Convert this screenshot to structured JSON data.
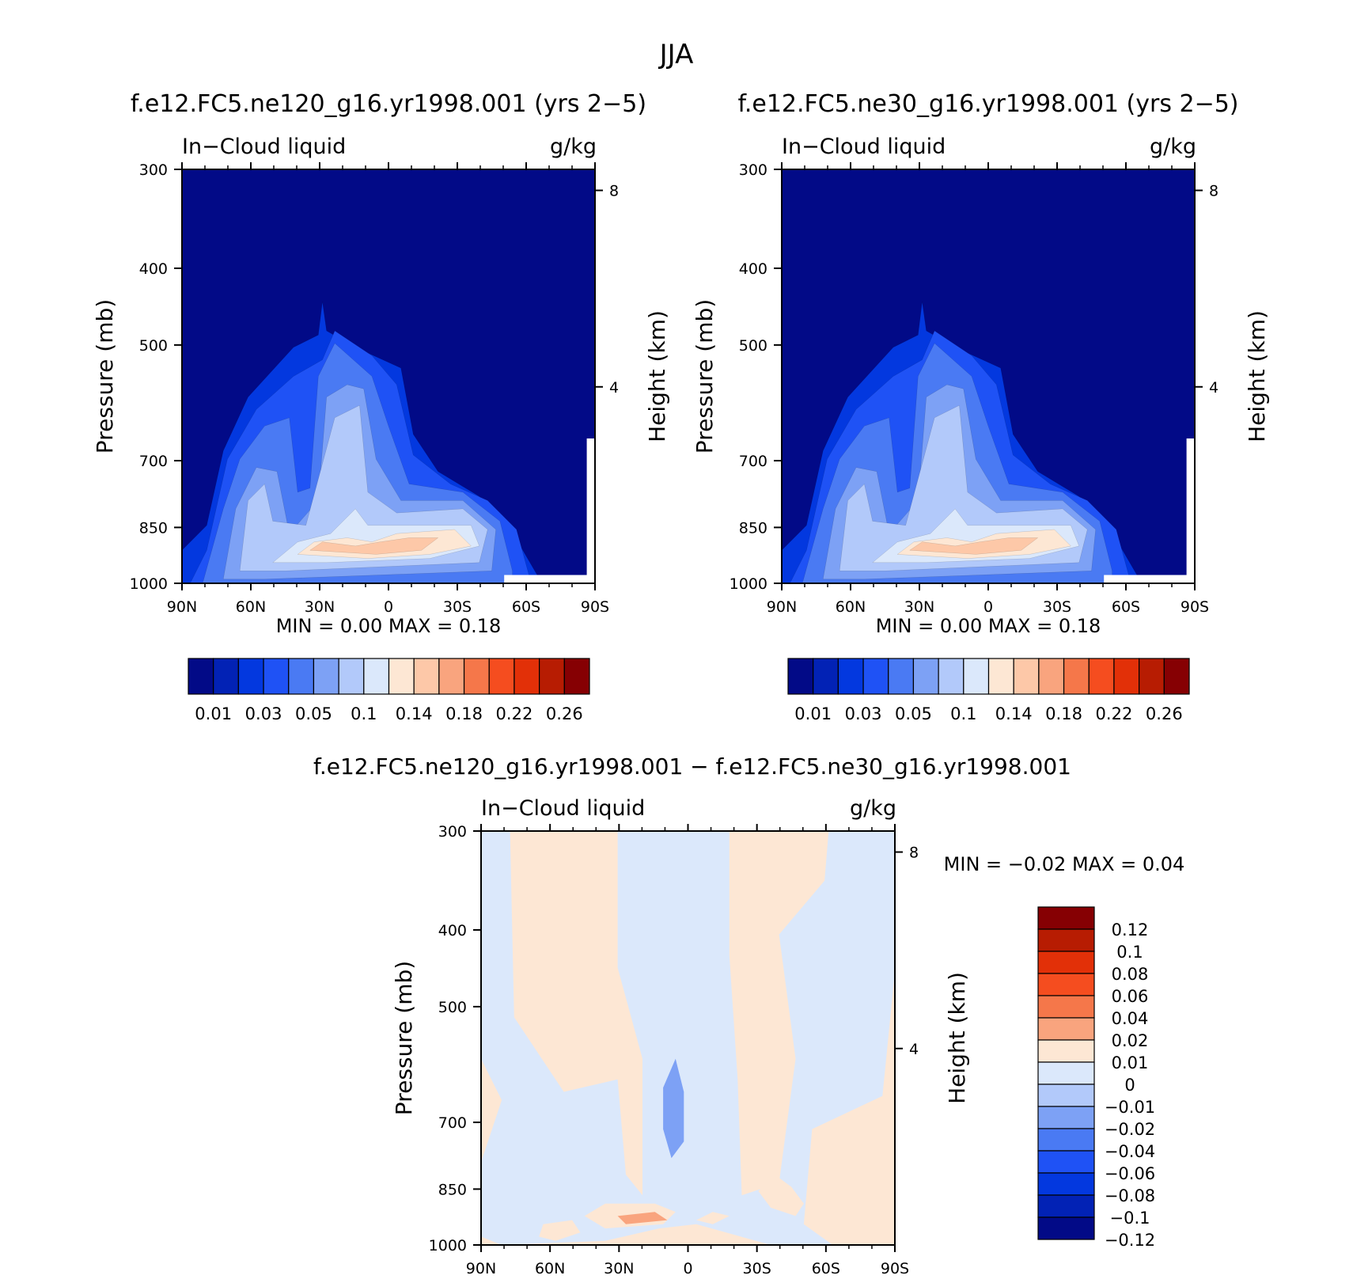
{
  "figure_title": "JJA",
  "diff_title": "f.e12.FC5.ne120_g16.yr1998.001 − f.e12.FC5.ne30_g16.yr1998.001",
  "chart_data": [
    {
      "type": "heatmap",
      "title": "f.e12.FC5.ne120_g16.yr1998.001 (yrs 2−5)",
      "left_string": "In−Cloud liquid",
      "right_string": "g/kg",
      "xlabel": "",
      "ylabel": "Pressure (mb)",
      "y2label": "Height (km)",
      "x_ticks": [
        "90N",
        "60N",
        "30N",
        "0",
        "30S",
        "60S",
        "90S"
      ],
      "y_ticks": [
        "300",
        "400",
        "500",
        "700",
        "850",
        "1000"
      ],
      "y2_ticks": [
        "8",
        "4"
      ],
      "ylim": [
        1000,
        300
      ],
      "y_scale": "log",
      "min_max_text": "MIN =     0.00   MAX =     0.18",
      "min": 0.0,
      "max": 0.18,
      "colorbar_labels": [
        "0.01",
        "0.03",
        "0.05",
        "0.1",
        "0.14",
        "0.18",
        "0.22",
        "0.26"
      ],
      "colorbar_levels": [
        0.01,
        0.02,
        0.03,
        0.04,
        0.05,
        0.07,
        0.1,
        0.12,
        0.14,
        0.16,
        0.18,
        0.2,
        0.22,
        0.24,
        0.26
      ],
      "colorbar_colors": [
        "#020a87",
        "#0222b5",
        "#0338df",
        "#1f52f5",
        "#4a7af3",
        "#7da1f5",
        "#b2c9fa",
        "#dbe8fb",
        "#fde7d4",
        "#fdc8a8",
        "#f9a47e",
        "#f5774a",
        "#f54d1f",
        "#e23008",
        "#b71c02",
        "#860003"
      ]
    },
    {
      "type": "heatmap",
      "title": "f.e12.FC5.ne30_g16.yr1998.001 (yrs 2−5)",
      "left_string": "In−Cloud liquid",
      "right_string": "g/kg",
      "xlabel": "",
      "ylabel": "Pressure (mb)",
      "y2label": "Height (km)",
      "x_ticks": [
        "90N",
        "60N",
        "30N",
        "0",
        "30S",
        "60S",
        "90S"
      ],
      "y_ticks": [
        "300",
        "400",
        "500",
        "700",
        "850",
        "1000"
      ],
      "y2_ticks": [
        "8",
        "4"
      ],
      "ylim": [
        1000,
        300
      ],
      "y_scale": "log",
      "min_max_text": "MIN =     0.00   MAX =     0.18",
      "min": 0.0,
      "max": 0.18,
      "colorbar_labels": [
        "0.01",
        "0.03",
        "0.05",
        "0.1",
        "0.14",
        "0.18",
        "0.22",
        "0.26"
      ],
      "colorbar_levels": [
        0.01,
        0.02,
        0.03,
        0.04,
        0.05,
        0.07,
        0.1,
        0.12,
        0.14,
        0.16,
        0.18,
        0.2,
        0.22,
        0.24,
        0.26
      ],
      "colorbar_colors": [
        "#020a87",
        "#0222b5",
        "#0338df",
        "#1f52f5",
        "#4a7af3",
        "#7da1f5",
        "#b2c9fa",
        "#dbe8fb",
        "#fde7d4",
        "#fdc8a8",
        "#f9a47e",
        "#f5774a",
        "#f54d1f",
        "#e23008",
        "#b71c02",
        "#860003"
      ]
    },
    {
      "type": "heatmap",
      "title": "",
      "left_string": "In−Cloud liquid",
      "right_string": "g/kg",
      "xlabel": "",
      "ylabel": "Pressure (mb)",
      "y2label": "Height (km)",
      "x_ticks": [
        "90N",
        "60N",
        "30N",
        "0",
        "30S",
        "60S",
        "90S"
      ],
      "y_ticks": [
        "300",
        "400",
        "500",
        "700",
        "850",
        "1000"
      ],
      "y2_ticks": [
        "8",
        "4"
      ],
      "ylim": [
        1000,
        300
      ],
      "y_scale": "log",
      "min_max_text": "MIN =   −0.02   MAX =     0.04",
      "min": -0.02,
      "max": 0.04,
      "colorbar_labels": [
        "0.12",
        "0.1",
        "0.08",
        "0.06",
        "0.04",
        "0.02",
        "0.01",
        "0",
        "−0.01",
        "−0.02",
        "−0.04",
        "−0.06",
        "−0.08",
        "−0.1",
        "−0.12"
      ],
      "colorbar_colors": [
        "#860003",
        "#b71c02",
        "#e23008",
        "#f54d1f",
        "#f5774a",
        "#f9a47e",
        "#fde7d4",
        "#dbe8fb",
        "#b2c9fa",
        "#7da1f5",
        "#4a7af3",
        "#1f52f5",
        "#0338df",
        "#0222b5",
        "#020a87"
      ]
    }
  ]
}
